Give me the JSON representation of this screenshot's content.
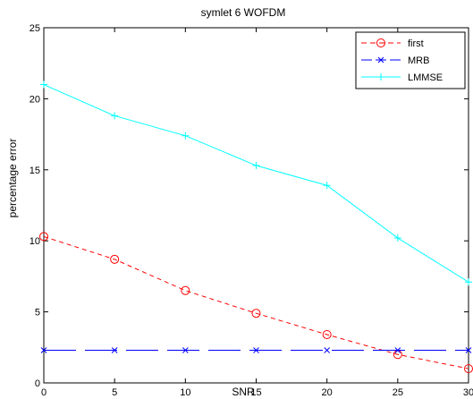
{
  "chart_data": {
    "type": "line",
    "title": "symlet 6 WOFDM",
    "xlabel": "SNR",
    "ylabel": "percentage error",
    "x": [
      0,
      5,
      10,
      15,
      20,
      25,
      30
    ],
    "xlim": [
      0,
      30
    ],
    "ylim": [
      0,
      25
    ],
    "xticks": [
      "0",
      "5",
      "10",
      "15",
      "20",
      "25",
      "30"
    ],
    "yticks": [
      "0",
      "5",
      "10",
      "15",
      "20",
      "25"
    ],
    "grid": false,
    "legend_position": "top-right",
    "series": [
      {
        "name": "first",
        "values": [
          10.3,
          8.7,
          6.5,
          4.9,
          3.4,
          2.0,
          1.0
        ],
        "color": "#ff0000",
        "line_style": "dashed",
        "marker": "circle"
      },
      {
        "name": "MRB",
        "values": [
          2.3,
          2.3,
          2.3,
          2.3,
          2.3,
          2.3,
          2.3
        ],
        "color": "#0000ff",
        "line_style": "long-dash",
        "marker": "x"
      },
      {
        "name": "LMMSE",
        "values": [
          21.0,
          18.8,
          17.4,
          15.3,
          13.9,
          10.2,
          7.1
        ],
        "color": "#00ffff",
        "line_style": "solid",
        "marker": "plus"
      }
    ]
  }
}
